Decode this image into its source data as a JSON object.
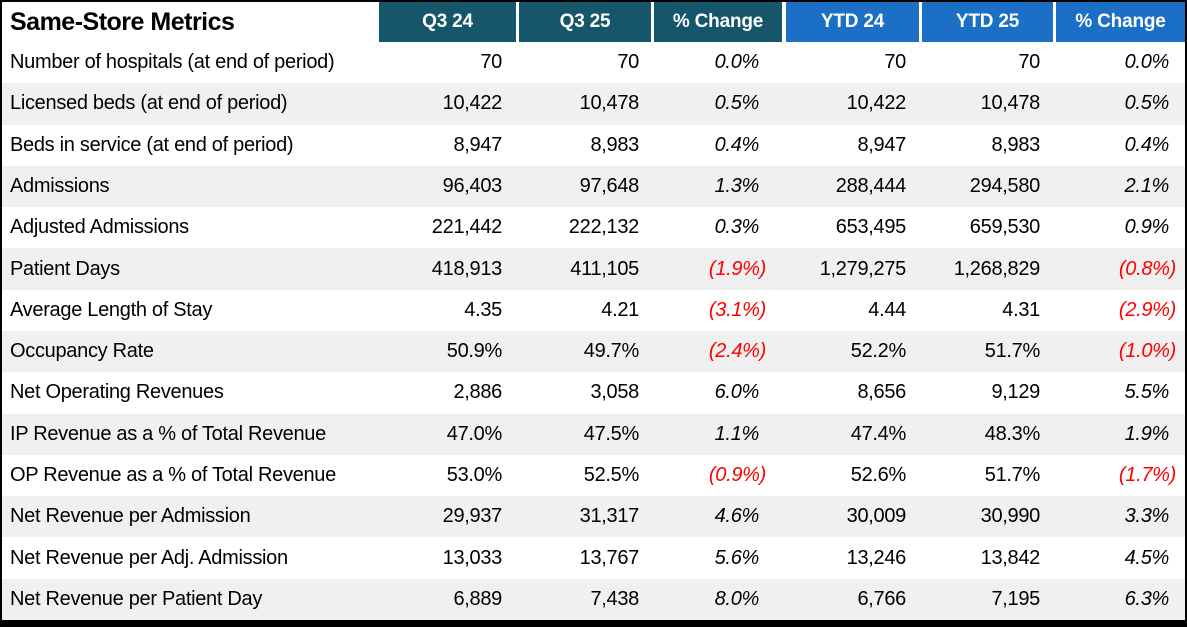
{
  "title": "Same-Store Metrics",
  "colors": {
    "header_teal": "#16566B",
    "header_blue": "#1B6FC4",
    "row_alt_gray": "#F0F0F0",
    "negative_red": "#FF0000",
    "text": "#000000",
    "frame": "#000000"
  },
  "table": {
    "columns": [
      {
        "label": "Q3 24",
        "group": "quarter"
      },
      {
        "label": "Q3 25",
        "group": "quarter"
      },
      {
        "label": "% Change",
        "group": "quarter"
      },
      {
        "label": "YTD 24",
        "group": "ytd"
      },
      {
        "label": "YTD 25",
        "group": "ytd"
      },
      {
        "label": "% Change",
        "group": "ytd"
      }
    ],
    "pct_column_indexes": [
      2,
      5
    ],
    "rows": [
      {
        "label": "Number of hospitals (at end of period)",
        "values": [
          "70",
          "70",
          "0.0%",
          "70",
          "70",
          "0.0%"
        ]
      },
      {
        "label": "Licensed beds (at end of period)",
        "values": [
          "10,422",
          "10,478",
          "0.5%",
          "10,422",
          "10,478",
          "0.5%"
        ]
      },
      {
        "label": "Beds in service (at end of period)",
        "values": [
          "8,947",
          "8,983",
          "0.4%",
          "8,947",
          "8,983",
          "0.4%"
        ]
      },
      {
        "label": "Admissions",
        "values": [
          "96,403",
          "97,648",
          "1.3%",
          "288,444",
          "294,580",
          "2.1%"
        ]
      },
      {
        "label": "Adjusted Admissions",
        "values": [
          "221,442",
          "222,132",
          "0.3%",
          "653,495",
          "659,530",
          "0.9%"
        ]
      },
      {
        "label": "Patient Days",
        "values": [
          "418,913",
          "411,105",
          "(1.9%)",
          "1,279,275",
          "1,268,829",
          "(0.8%)"
        ]
      },
      {
        "label": "Average Length of Stay",
        "values": [
          "4.35",
          "4.21",
          "(3.1%)",
          "4.44",
          "4.31",
          "(2.9%)"
        ]
      },
      {
        "label": "Occupancy Rate",
        "values": [
          "50.9%",
          "49.7%",
          "(2.4%)",
          "52.2%",
          "51.7%",
          "(1.0%)"
        ]
      },
      {
        "label": "Net Operating Revenues",
        "values": [
          "2,886",
          "3,058",
          "6.0%",
          "8,656",
          "9,129",
          "5.5%"
        ]
      },
      {
        "label": "IP Revenue as a % of Total Revenue",
        "values": [
          "47.0%",
          "47.5%",
          "1.1%",
          "47.4%",
          "48.3%",
          "1.9%"
        ]
      },
      {
        "label": "OP Revenue as a % of Total Revenue",
        "values": [
          "53.0%",
          "52.5%",
          "(0.9%)",
          "52.6%",
          "51.7%",
          "(1.7%)"
        ]
      },
      {
        "label": "Net Revenue per Admission",
        "values": [
          "29,937",
          "31,317",
          "4.6%",
          "30,009",
          "30,990",
          "3.3%"
        ]
      },
      {
        "label": "Net Revenue per Adj. Admission",
        "values": [
          "13,033",
          "13,767",
          "5.6%",
          "13,246",
          "13,842",
          "4.5%"
        ]
      },
      {
        "label": "Net Revenue per Patient Day",
        "values": [
          "6,889",
          "7,438",
          "8.0%",
          "6,766",
          "7,195",
          "6.3%"
        ]
      }
    ]
  }
}
